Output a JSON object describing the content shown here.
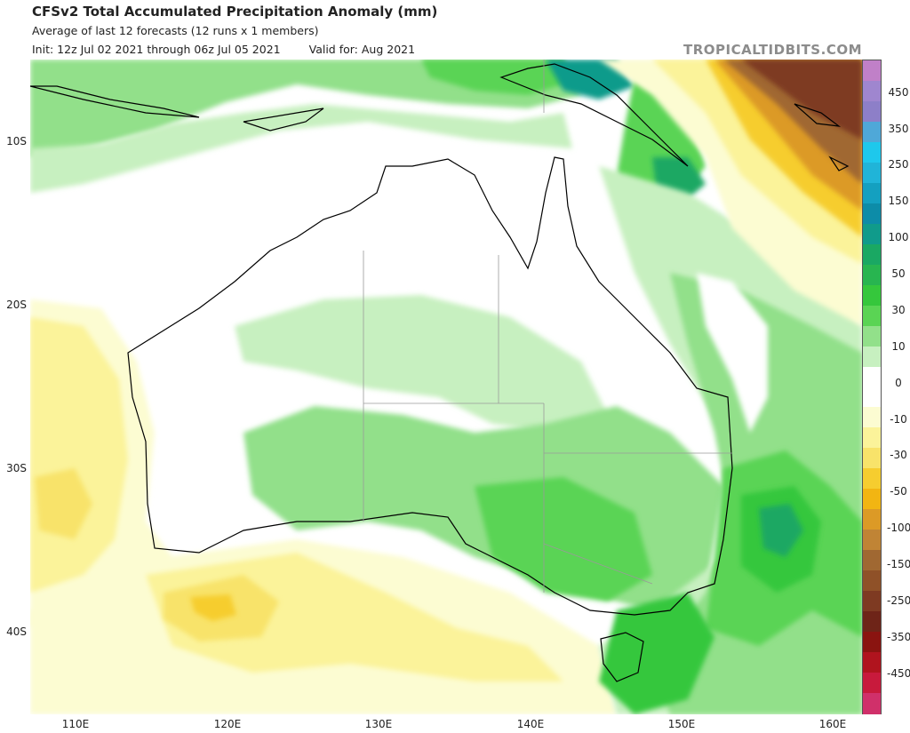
{
  "header": {
    "title": "CFSv2 Total Accumulated Precipitation Anomaly (mm)",
    "subtitle": "Average of last 12 forecasts (12 runs x 1 members)",
    "init": "Init: 12z Jul 02 2021 through 06z Jul 05 2021",
    "valid": "Valid for: Aug 2021",
    "brand": "TROPICALTIDBITS.COM"
  },
  "axes": {
    "lat_labels": [
      "10S",
      "20S",
      "30S",
      "40S"
    ],
    "lon_labels": [
      "110E",
      "120E",
      "130E",
      "140E",
      "150E",
      "160E"
    ]
  },
  "legend": {
    "labels": [
      "450",
      "350",
      "250",
      "150",
      "100",
      "50",
      "30",
      "10",
      "0",
      "-10",
      "-30",
      "-50",
      "-100",
      "-150",
      "-250",
      "-350",
      "-450"
    ],
    "colors": [
      "#c080c8",
      "#9f86cf",
      "#8d7fc8",
      "#4fa8d8",
      "#1ec8ec",
      "#20b4d8",
      "#14a0c0",
      "#0d8ca8",
      "#109b8b",
      "#1aa863",
      "#28b550",
      "#35c73c",
      "#5ad454",
      "#92e08a",
      "#c7f0c0",
      "#ffffff",
      "#ffffff",
      "#fcfcd2",
      "#fbf39a",
      "#f8e36a",
      "#f6cd2f",
      "#f2b512",
      "#dc9a26",
      "#c08435",
      "#a06832",
      "#8f5128",
      "#7e3a22",
      "#6e2418",
      "#8a1410",
      "#b0141e",
      "#c81a3c",
      "#d0306a"
    ]
  },
  "colors": {
    "ocean": "#ffffff",
    "coast": "#000000",
    "state_border": "#9a9a9a",
    "wet_light": "#c7f0c0",
    "wet_mid": "#92e08a",
    "wet_strong": "#5ad454",
    "wet_heavy": "#35c73c",
    "wet_deep": "#1aa863",
    "wet_teal": "#109b8b",
    "dry_light": "#fcfcd2",
    "dry_mid": "#fbf39a",
    "dry_strong": "#f8e36a",
    "dry_heavy": "#f6cd2f",
    "dry_deep": "#f2b512",
    "dry_orange": "#dc9a26",
    "dry_brown": "#a06832",
    "dry_darkbrown": "#7e3a22"
  }
}
